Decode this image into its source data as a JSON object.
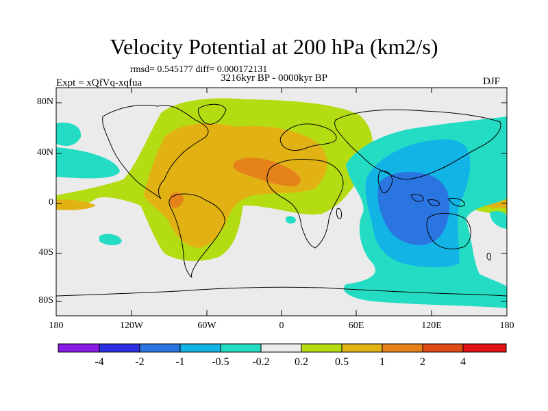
{
  "title": "Velocity Potential at 200 hPa (km2/s)",
  "stats": "rmsd= 0.545177 diff= 0.000172131",
  "period": "3216kyr BP - 0000kyr BP",
  "experiment": "Expt = xQfVq-xqfua",
  "season": "DJF",
  "y_axis": {
    "labels": [
      "80N",
      "40N",
      "0",
      "40S",
      "80S"
    ]
  },
  "x_axis": {
    "labels": [
      "180",
      "120W",
      "60W",
      "0",
      "60E",
      "120E",
      "180"
    ]
  },
  "colorbar": {
    "labels": [
      "-4",
      "-2",
      "-1",
      "-0.5",
      "-0.2",
      "0.2",
      "0.5",
      "1",
      "2",
      "4"
    ],
    "colors": [
      "#8a1ae6",
      "#2b2fe0",
      "#2a75e0",
      "#12b4e6",
      "#24dcc3",
      "#ebebeb",
      "#b4dc12",
      "#e2b214",
      "#e6821a",
      "#e04a14",
      "#e01414"
    ]
  },
  "map_colors": {
    "neutral": "#ebebeb",
    "pos_0_2": "#b4dc12",
    "pos_0_5": "#e2b214",
    "pos_1": "#e6821a",
    "neg_0_2": "#24dcc3",
    "neg_0_5": "#12b4e6",
    "neg_1": "#2a75e0"
  }
}
